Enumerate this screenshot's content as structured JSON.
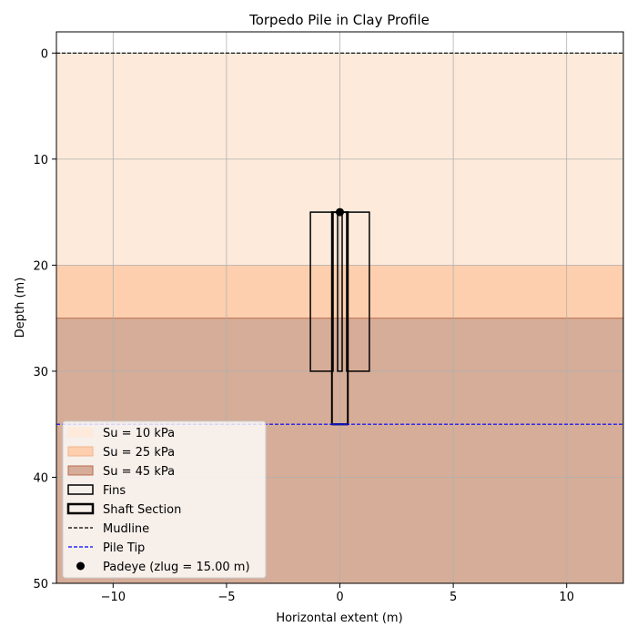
{
  "chart_data": {
    "type": "area",
    "title": "Torpedo Pile in Clay Profile",
    "xlabel": "Horizontal extent (m)",
    "ylabel": "Depth (m)",
    "xlim": [
      -12.5,
      12.5
    ],
    "ylim": [
      50,
      -2
    ],
    "y_inverted": true,
    "grid": true,
    "legend_position": "lower-left",
    "x_ticks": [
      -10,
      -5,
      0,
      5,
      10
    ],
    "x_tick_labels": [
      "−10",
      "−5",
      "0",
      "5",
      "10"
    ],
    "y_ticks": [
      0,
      10,
      20,
      30,
      40,
      50
    ],
    "y_tick_labels": [
      "0",
      "10",
      "20",
      "30",
      "40",
      "50"
    ],
    "layers": [
      {
        "label": "Su = 10 kPa",
        "top": 0,
        "bottom": 20,
        "color": "#fdeadb"
      },
      {
        "label": "Su = 25 kPa",
        "top": 20,
        "bottom": 25,
        "color": "#fdcfae"
      },
      {
        "label": "Su = 45 kPa",
        "top": 25,
        "bottom": 50,
        "color": "#d6ad98",
        "edge": "#b96c4f"
      }
    ],
    "fins": {
      "label": "Fins",
      "rects": [
        {
          "x0": -1.3,
          "x1": -0.3,
          "top": 15,
          "bottom": 30
        },
        {
          "x0": 0.3,
          "x1": 1.3,
          "top": 15,
          "bottom": 30
        },
        {
          "x0": -0.1,
          "x1": 0.1,
          "top": 15,
          "bottom": 30
        }
      ]
    },
    "shaft": {
      "label": "Shaft Section",
      "x0": -0.35,
      "x1": 0.35,
      "top": 15,
      "bottom": 35,
      "tip_color": "#1a237e"
    },
    "mudline": {
      "label": "Mudline",
      "depth": 0,
      "color": "#000000"
    },
    "pile_tip": {
      "label": "Pile Tip",
      "depth": 35,
      "color": "#0000ff"
    },
    "padeye": {
      "label": "Padeye (zlug = 15.00 m)",
      "x": 0,
      "depth": 15,
      "color": "#000000"
    },
    "legend_entries": [
      "Su = 10 kPa",
      "Su = 25 kPa",
      "Su = 45 kPa",
      "Fins",
      "Shaft Section",
      "Mudline",
      "Pile Tip",
      "Padeye (zlug = 15.00 m)"
    ]
  }
}
